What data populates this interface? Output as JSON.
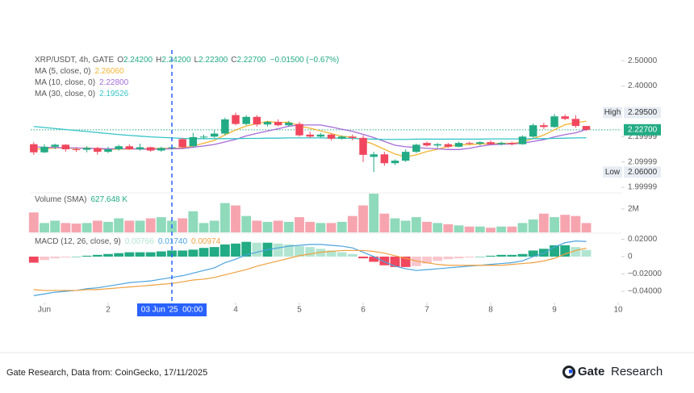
{
  "chart_data": {
    "type": "candlestick",
    "symbol": "XRP/USDT, 4h, GATE",
    "header_fields": [
      {
        "key": "O",
        "text": "2.24200"
      },
      {
        "key": "H",
        "text": "2.24200"
      },
      {
        "key": "L",
        "text": "2.22300"
      },
      {
        "key": "C",
        "text": "2.22700"
      }
    ],
    "change": "−0.01500 (−0.67%)",
    "up_color": "#22ab84",
    "down_color": "#f0475e",
    "x": [
      0.8333,
      1,
      1.1667,
      1.3333,
      1.5,
      1.6667,
      1.8333,
      2,
      2.1667,
      2.3333,
      2.5,
      2.6667,
      2.8333,
      3,
      3.1667,
      3.3333,
      3.5,
      3.6667,
      3.8333,
      4,
      4.1667,
      4.3333,
      4.5,
      4.6667,
      4.8333,
      5,
      5.1667,
      5.3333,
      5.5,
      5.6667,
      5.8333,
      6,
      6.1667,
      6.3333,
      6.5,
      6.6667,
      6.8333,
      7,
      7.1667,
      7.3333,
      7.5,
      7.6667,
      7.8333,
      8,
      8.1667,
      8.3333,
      8.5,
      8.6667,
      8.8333,
      9,
      9.1667,
      9.3333,
      9.5
    ],
    "open": [
      2.17,
      2.138,
      2.16,
      2.168,
      2.15,
      2.148,
      2.155,
      2.14,
      2.15,
      2.162,
      2.15,
      2.158,
      2.145,
      2.155,
      2.19,
      2.162,
      2.198,
      2.2,
      2.212,
      2.285,
      2.25,
      2.278,
      2.248,
      2.258,
      2.245,
      2.25,
      2.208,
      2.2,
      2.208,
      2.192,
      2.2,
      2.195,
      2.12,
      2.13,
      2.095,
      2.105,
      2.14,
      2.175,
      2.165,
      2.17,
      2.16,
      2.175,
      2.172,
      2.178,
      2.17,
      2.175,
      2.17,
      2.2,
      2.245,
      2.238,
      2.28,
      2.27,
      2.242
    ],
    "high": [
      2.178,
      2.17,
      2.172,
      2.17,
      2.158,
      2.162,
      2.16,
      2.16,
      2.168,
      2.17,
      2.172,
      2.16,
      2.16,
      2.165,
      2.195,
      2.215,
      2.208,
      2.225,
      2.275,
      2.295,
      2.285,
      2.285,
      2.262,
      2.268,
      2.262,
      2.258,
      2.22,
      2.215,
      2.212,
      2.205,
      2.208,
      2.205,
      2.14,
      2.14,
      2.11,
      2.15,
      2.172,
      2.18,
      2.175,
      2.175,
      2.18,
      2.18,
      2.182,
      2.185,
      2.18,
      2.18,
      2.205,
      2.252,
      2.255,
      2.29,
      2.288,
      2.285,
      2.242
    ],
    "low": [
      2.128,
      2.135,
      2.15,
      2.14,
      2.14,
      2.138,
      2.129,
      2.135,
      2.145,
      2.148,
      2.145,
      2.14,
      2.14,
      2.148,
      2.152,
      2.16,
      2.19,
      2.195,
      2.205,
      2.245,
      2.245,
      2.24,
      2.24,
      2.24,
      2.24,
      2.2,
      2.195,
      2.195,
      2.185,
      2.188,
      2.185,
      2.1,
      2.06,
      2.085,
      2.088,
      2.1,
      2.135,
      2.16,
      2.155,
      2.155,
      2.158,
      2.168,
      2.165,
      2.168,
      2.165,
      2.165,
      2.168,
      2.195,
      2.23,
      2.235,
      2.265,
      2.235,
      2.223
    ],
    "close": [
      2.138,
      2.16,
      2.168,
      2.15,
      2.148,
      2.155,
      2.14,
      2.15,
      2.162,
      2.15,
      2.158,
      2.145,
      2.155,
      2.158,
      2.158,
      2.198,
      2.2,
      2.212,
      2.268,
      2.25,
      2.278,
      2.248,
      2.258,
      2.245,
      2.255,
      2.205,
      2.2,
      2.208,
      2.192,
      2.2,
      2.195,
      2.128,
      2.13,
      2.095,
      2.105,
      2.14,
      2.168,
      2.165,
      2.17,
      2.16,
      2.175,
      2.172,
      2.178,
      2.17,
      2.175,
      2.17,
      2.2,
      2.245,
      2.238,
      2.28,
      2.27,
      2.242,
      2.227
    ],
    "xlim": [
      0.785,
      10.05
    ],
    "xticks": [
      {
        "value": 1,
        "label": "Jun"
      },
      2,
      4,
      5,
      6,
      7,
      8,
      9,
      10
    ],
    "ylim": [
      1.981,
      2.542
    ],
    "yticks": [
      {
        "value": 2.5,
        "label": "2.50000"
      },
      {
        "value": 2.4,
        "label": "2.40000"
      },
      2.19999,
      2.09999,
      1.99999
    ],
    "overlays": [
      {
        "name": "MA (5, close, 0)",
        "color": "#f2b431",
        "value_label": "2.26060",
        "values": [
          2.15,
          2.152,
          2.155,
          2.155,
          2.153,
          2.156,
          2.152,
          2.149,
          2.151,
          2.151,
          2.152,
          2.153,
          2.154,
          2.153,
          2.155,
          2.163,
          2.174,
          2.185,
          2.207,
          2.226,
          2.242,
          2.251,
          2.26,
          2.256,
          2.257,
          2.242,
          2.233,
          2.223,
          2.212,
          2.201,
          2.199,
          2.185,
          2.169,
          2.15,
          2.131,
          2.12,
          2.128,
          2.141,
          2.15,
          2.161,
          2.168,
          2.168,
          2.171,
          2.171,
          2.174,
          2.173,
          2.179,
          2.192,
          2.206,
          2.227,
          2.247,
          2.255,
          2.2606
        ]
      },
      {
        "name": "MA (10, close, 0)",
        "color": "#a56bd9",
        "value_label": "2.22800",
        "values": [
          2.16,
          2.158,
          2.157,
          2.156,
          2.155,
          2.154,
          2.153,
          2.152,
          2.152,
          2.152,
          2.151,
          2.15,
          2.151,
          2.152,
          2.153,
          2.158,
          2.163,
          2.169,
          2.179,
          2.189,
          2.203,
          2.213,
          2.222,
          2.231,
          2.241,
          2.246,
          2.246,
          2.246,
          2.238,
          2.229,
          2.221,
          2.209,
          2.196,
          2.181,
          2.166,
          2.16,
          2.157,
          2.154,
          2.152,
          2.149,
          2.149,
          2.154,
          2.162,
          2.168,
          2.17,
          2.171,
          2.174,
          2.181,
          2.188,
          2.199,
          2.208,
          2.215,
          2.228
        ]
      },
      {
        "name": "MA (30, close, 0)",
        "color": "#35c4c8",
        "value_label": "2.19526",
        "values": [
          2.24,
          2.236,
          2.232,
          2.228,
          2.224,
          2.22,
          2.216,
          2.212,
          2.208,
          2.205,
          2.202,
          2.199,
          2.197,
          2.195,
          2.193,
          2.192,
          2.192,
          2.192,
          2.192,
          2.192,
          2.193,
          2.193,
          2.194,
          2.194,
          2.195,
          2.195,
          2.195,
          2.195,
          2.194,
          2.194,
          2.193,
          2.191,
          2.19,
          2.189,
          2.189,
          2.189,
          2.19,
          2.19,
          2.19,
          2.19,
          2.19,
          2.19,
          2.19,
          2.191,
          2.191,
          2.191,
          2.191,
          2.192,
          2.192,
          2.193,
          2.194,
          2.195,
          2.19526
        ]
      }
    ],
    "price_markers": [
      {
        "name": "High",
        "value": 2.295,
        "label": "2.29500"
      },
      {
        "name": "Low",
        "value": 2.06,
        "label": "2.06000"
      }
    ],
    "last_price": {
      "value": 2.227,
      "label": "2.22700",
      "color": "#22ab84"
    },
    "crosshair": {
      "x": 3,
      "label": "03 Jun '25  00:00",
      "color": "#2962ff"
    },
    "volume": {
      "name": "Volume (SMA)",
      "value_label": "627.648 K",
      "up_color": "#8fdabb",
      "down_color": "#f6a5af",
      "ylim": [
        0,
        3300000
      ],
      "yticks": [
        {
          "value": 2000000,
          "label": "2M"
        }
      ],
      "values": [
        1700000,
        800000,
        1000000,
        800000,
        750000,
        800000,
        1000000,
        900000,
        1200000,
        1000000,
        1000000,
        1200000,
        1300000,
        1000000,
        1200000,
        1800000,
        800000,
        1000000,
        2500000,
        2300000,
        1400000,
        1000000,
        900000,
        1000000,
        900000,
        1300000,
        900000,
        800000,
        800000,
        900000,
        1400000,
        2300000,
        3300000,
        1600000,
        1200000,
        1000000,
        1300000,
        900000,
        800000,
        700000,
        600000,
        500000,
        500000,
        400000,
        500000,
        500000,
        800000,
        1100000,
        1600000,
        1300000,
        1500000,
        1400000,
        800000
      ]
    },
    "macd": {
      "name": "MACD (12, 26, close, 9)",
      "ylim": [
        -0.053,
        0.026
      ],
      "yticks": [
        {
          "value": 0.02,
          "label": "0.02000"
        },
        0,
        {
          "value": -0.02,
          "label": "−0.02000"
        },
        {
          "value": -0.04,
          "label": "−0.04000"
        }
      ],
      "histogram": {
        "value_label": "0.00766",
        "colors": {
          "up_rising": "#22ab84",
          "up_falling": "#b2e5d1",
          "down_rising": "#f0475e",
          "down_falling": "#f9c6cc"
        },
        "values": [
          -0.007,
          -0.004,
          -0.002,
          -0.001,
          0.0,
          0.001,
          0.002,
          0.003,
          0.004,
          0.005,
          0.005,
          0.005,
          0.006,
          0.007,
          0.007,
          0.008,
          0.01,
          0.011,
          0.014,
          0.015,
          0.017,
          0.016,
          0.016,
          0.015,
          0.014,
          0.012,
          0.011,
          0.009,
          0.007,
          0.005,
          0.003,
          -0.002,
          -0.006,
          -0.01,
          -0.012,
          -0.012,
          -0.011,
          -0.008,
          -0.005,
          -0.003,
          -0.002,
          -0.001,
          0.0,
          0.001,
          0.002,
          0.002,
          0.003,
          0.007,
          0.009,
          0.013,
          0.013,
          0.011,
          0.00766
        ]
      },
      "macd_line": {
        "color": "#4aa3df",
        "value_label": "0.01740",
        "values": [
          -0.045,
          -0.043,
          -0.041,
          -0.04,
          -0.039,
          -0.037,
          -0.036,
          -0.034,
          -0.032,
          -0.03,
          -0.029,
          -0.028,
          -0.026,
          -0.024,
          -0.022,
          -0.019,
          -0.016,
          -0.013,
          -0.007,
          -0.003,
          0.002,
          0.005,
          0.008,
          0.01,
          0.012,
          0.013,
          0.014,
          0.014,
          0.013,
          0.012,
          0.01,
          0.005,
          0.0,
          -0.006,
          -0.011,
          -0.014,
          -0.016,
          -0.015,
          -0.014,
          -0.013,
          -0.012,
          -0.011,
          -0.01,
          -0.009,
          -0.008,
          -0.007,
          -0.005,
          0.0,
          0.004,
          0.011,
          0.016,
          0.018,
          0.0174
        ]
      },
      "signal_line": {
        "color": "#f0a040",
        "value_label": "0.00974",
        "values": [
          -0.038,
          -0.039,
          -0.039,
          -0.039,
          -0.039,
          -0.038,
          -0.038,
          -0.037,
          -0.036,
          -0.035,
          -0.034,
          -0.033,
          -0.032,
          -0.031,
          -0.029,
          -0.027,
          -0.026,
          -0.024,
          -0.021,
          -0.018,
          -0.015,
          -0.011,
          -0.008,
          -0.005,
          -0.002,
          0.001,
          0.003,
          0.005,
          0.006,
          0.007,
          0.007,
          0.007,
          0.006,
          0.004,
          0.001,
          -0.002,
          -0.005,
          -0.007,
          -0.009,
          -0.01,
          -0.01,
          -0.01,
          -0.01,
          -0.01,
          -0.01,
          -0.009,
          -0.008,
          -0.007,
          -0.005,
          -0.002,
          0.003,
          0.007,
          0.00974
        ]
      }
    }
  },
  "footer": {
    "source": "Gate Research, Data from: CoinGecko, 17/11/2025",
    "brand": {
      "name": "Gate",
      "suffix": "Research"
    }
  }
}
